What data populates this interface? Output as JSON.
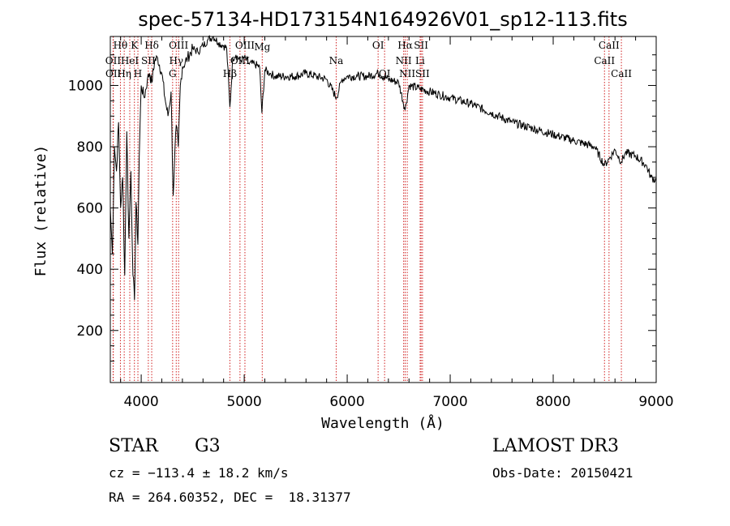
{
  "chart_data": {
    "type": "line",
    "title": "spec-57134-HD173154N164926V01_sp12-113.fits",
    "xlabel": "Wavelength (Å)",
    "ylabel": "Flux (relative)",
    "xlim": [
      3700,
      9000
    ],
    "ylim": [
      30,
      1160
    ],
    "xticks": [
      4000,
      5000,
      6000,
      7000,
      8000,
      9000
    ],
    "yticks": [
      200,
      400,
      600,
      800,
      1000
    ],
    "series": [
      {
        "name": "spectrum",
        "x": [
          3700,
          3720,
          3740,
          3760,
          3780,
          3800,
          3820,
          3840,
          3860,
          3880,
          3900,
          3920,
          3935,
          3950,
          3968,
          3980,
          4000,
          4030,
          4060,
          4080,
          4102,
          4130,
          4160,
          4200,
          4230,
          4260,
          4290,
          4310,
          4340,
          4360,
          4380,
          4400,
          4450,
          4500,
          4550,
          4600,
          4650,
          4700,
          4750,
          4800,
          4830,
          4861,
          4890,
          4920,
          4960,
          5000,
          5050,
          5100,
          5150,
          5172,
          5200,
          5250,
          5300,
          5400,
          5500,
          5600,
          5700,
          5800,
          5895,
          5950,
          6000,
          6100,
          6200,
          6300,
          6400,
          6500,
          6563,
          6600,
          6700,
          6800,
          6900,
          7000,
          7200,
          7400,
          7600,
          7800,
          8000,
          8200,
          8400,
          8498,
          8542,
          8600,
          8662,
          8700,
          8800,
          8900,
          8950,
          9000
        ],
        "values": [
          600,
          450,
          800,
          720,
          880,
          600,
          700,
          380,
          850,
          500,
          720,
          380,
          300,
          620,
          480,
          760,
          1000,
          960,
          1020,
          1040,
          1010,
          1080,
          1090,
          1040,
          960,
          900,
          980,
          640,
          870,
          800,
          1000,
          1060,
          1090,
          1120,
          1110,
          1130,
          1150,
          1160,
          1140,
          1130,
          1120,
          930,
          1090,
          1100,
          1080,
          1090,
          1070,
          1070,
          1060,
          910,
          1050,
          1040,
          1030,
          1030,
          1030,
          1040,
          1030,
          1020,
          960,
          1020,
          1030,
          1030,
          1030,
          1040,
          1020,
          1010,
          920,
          1000,
          990,
          980,
          970,
          960,
          940,
          910,
          880,
          860,
          840,
          820,
          800,
          740,
          760,
          790,
          750,
          780,
          770,
          740,
          700,
          690
        ]
      }
    ],
    "lines": [
      {
        "label": "Hθ",
        "x": 3798,
        "row": 1
      },
      {
        "label": "OII",
        "x": 3727,
        "row": 2
      },
      {
        "label": "OII",
        "x": 3729,
        "row": 3
      },
      {
        "label": "K",
        "x": 3934,
        "row": 1
      },
      {
        "label": "HeI",
        "x": 3889,
        "row": 2
      },
      {
        "label": "SII",
        "x": 4069,
        "row": 2
      },
      {
        "label": "Hη",
        "x": 3835,
        "row": 3
      },
      {
        "label": "H",
        "x": 3968,
        "row": 3
      },
      {
        "label": "Hδ",
        "x": 4102,
        "row": 1
      },
      {
        "label": "OIII",
        "x": 4363,
        "row": 1
      },
      {
        "label": "Hγ",
        "x": 4340,
        "row": 2
      },
      {
        "label": "G",
        "x": 4305,
        "row": 3
      },
      {
        "label": "OIII",
        "x": 5007,
        "row": 1
      },
      {
        "label": "OIII",
        "x": 4959,
        "row": 2
      },
      {
        "label": "Hβ",
        "x": 4861,
        "row": 3
      },
      {
        "label": "Mg",
        "x": 5175,
        "row": 0
      },
      {
        "label": "Na",
        "x": 5893,
        "row": 2
      },
      {
        "label": "OI",
        "x": 6300,
        "row": 1
      },
      {
        "label": "OI",
        "x": 6363,
        "row": 3
      },
      {
        "label": "Hα",
        "x": 6563,
        "row": 1
      },
      {
        "label": "NII",
        "x": 6548,
        "row": 2
      },
      {
        "label": "NII",
        "x": 6583,
        "row": 3
      },
      {
        "label": "SII",
        "x": 6717,
        "row": 1
      },
      {
        "label": "Li",
        "x": 6708,
        "row": 2
      },
      {
        "label": "SII",
        "x": 6731,
        "row": 3
      },
      {
        "label": "CaII",
        "x": 8542,
        "row": 1
      },
      {
        "label": "CaII",
        "x": 8498,
        "row": 2
      },
      {
        "label": "CaII",
        "x": 8662,
        "row": 3
      }
    ]
  },
  "info": {
    "object_type": "STAR",
    "subclass": "G3",
    "survey": "LAMOST DR3",
    "cz": "cz = −113.4 ± 18.2 km/s",
    "obs_date": "Obs-Date: 20150421",
    "coords": "RA = 264.60352, DEC =  18.31377"
  }
}
